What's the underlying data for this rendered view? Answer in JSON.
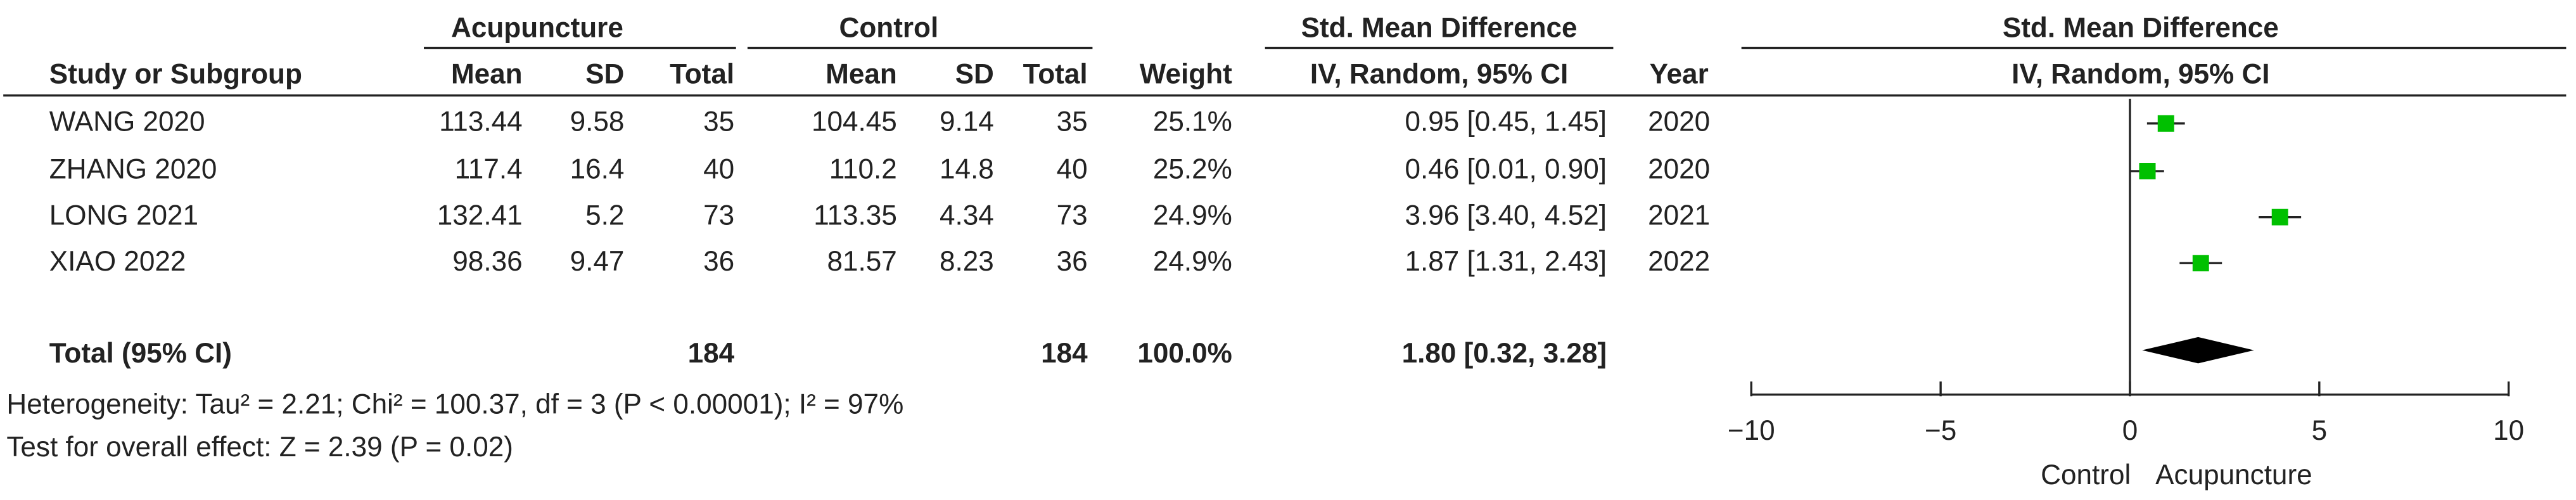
{
  "chart_data": {
    "type": "forest",
    "group_headers": [
      "Acupuncture",
      "Control",
      "Std. Mean Difference",
      "Std. Mean Difference"
    ],
    "columns": [
      "Study or Subgroup",
      "Mean",
      "SD",
      "Total",
      "Mean",
      "SD",
      "Total",
      "Weight",
      "IV, Random, 95% CI",
      "Year",
      "IV, Random, 95% CI"
    ],
    "rows": [
      [
        "WANG 2020",
        "113.44",
        "9.58",
        "35",
        "104.45",
        "9.14",
        "35"
      ],
      [
        "ZHANG 2020",
        "117.4",
        "16.4",
        "40",
        "110.2",
        "14.8",
        "40"
      ],
      [
        "LONG 2021",
        "132.41",
        "5.2",
        "73",
        "113.35",
        "4.34",
        "73"
      ],
      [
        "XIAO 2022",
        "98.36",
        "9.47",
        "36",
        "81.57",
        "8.23",
        "36"
      ]
    ],
    "weights": [
      25.1,
      25.2,
      24.9,
      24.9
    ],
    "weight_labels": [
      "25.1%",
      "25.2%",
      "24.9%",
      "24.9%"
    ],
    "smd": [
      0.95,
      0.46,
      3.96,
      1.87
    ],
    "ci_low": [
      0.45,
      0.01,
      3.4,
      1.31
    ],
    "ci_high": [
      1.45,
      0.9,
      4.52,
      2.43
    ],
    "value_labels": [
      "0.95 [0.45, 1.45]",
      "0.46 [0.01, 0.90]",
      "3.96 [3.40, 4.52]",
      "1.87 [1.31, 2.43]"
    ],
    "years": [
      "2020",
      "2020",
      "2021",
      "2022"
    ],
    "total": {
      "label": "Total (95% CI)",
      "n_acupuncture": "184",
      "n_control": "184",
      "weight_label": "100.0%",
      "smd": 1.8,
      "ci_low": 0.32,
      "ci_high": 3.28,
      "value_label": "1.80 [0.32, 3.28]"
    },
    "notes": [
      "Heterogeneity: Tau² = 2.21; Chi² = 100.37, df = 3 (P < 0.00001); I² = 97%",
      "Test for overall effect: Z = 2.39 (P = 0.02)"
    ],
    "xlim": [
      -10,
      10
    ],
    "xticks": [
      {
        "value": -10,
        "label": "−10"
      },
      {
        "value": -5,
        "label": "−5"
      },
      0,
      5,
      10
    ],
    "favours": [
      "Control",
      "Acupuncture"
    ],
    "square_color": "#00c000",
    "diamond_color": "#000000"
  }
}
